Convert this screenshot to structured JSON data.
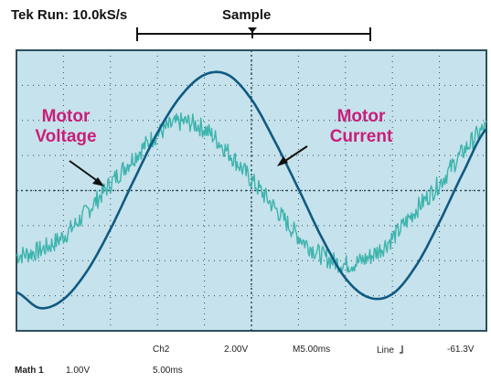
{
  "header": {
    "status": "Tek Run: 10.0kS/s",
    "mode": "Sample"
  },
  "annotations": {
    "voltage": [
      "Motor",
      "Voltage"
    ],
    "current": [
      "Motor",
      "Current"
    ]
  },
  "readout": {
    "ch_label": "Ch2",
    "ch_scale": "2.00V",
    "timebase": "M5.00ms",
    "trigger_source": "Line",
    "trigger_icon": "trigger-slope-icon",
    "trigger_level": "-61.3V",
    "math_label": "Math 1",
    "math_scale": "1.00V",
    "math_time": "5.00ms"
  },
  "colors": {
    "screen_bg": "#c6e2ec",
    "current_trace": "#0f5a82",
    "voltage_trace": "#3cb4ac",
    "annotation": "#c81e78",
    "graticule": "#2f4e5c"
  },
  "chart_data": {
    "type": "line",
    "grid": true,
    "grid_divisions": {
      "x": 10,
      "y": 8
    },
    "title": "",
    "xlabel": "",
    "ylabel": "",
    "xlim": [
      0,
      10
    ],
    "ylim": [
      -4,
      4
    ],
    "series": [
      {
        "name": "Motor Current",
        "color": "#0f5a82",
        "noisy": false,
        "x": [
          0,
          0.5,
          1,
          1.5,
          2,
          2.5,
          3,
          3.5,
          4,
          4.5,
          5,
          5.5,
          6,
          6.5,
          7,
          7.5,
          8,
          8.5,
          9,
          9.5,
          10
        ],
        "y": [
          -2.9,
          -3.35,
          -3.1,
          -2.3,
          -1.1,
          0.3,
          1.65,
          2.7,
          3.3,
          3.3,
          2.6,
          1.4,
          0.05,
          -1.35,
          -2.5,
          -3.05,
          -2.95,
          -2.15,
          -0.9,
          0.5,
          1.75
        ]
      },
      {
        "name": "Motor Voltage",
        "color": "#3cb4ac",
        "noisy": true,
        "x": [
          0,
          0.5,
          1,
          1.5,
          2,
          2.5,
          3,
          3.5,
          4,
          4.5,
          5,
          5.5,
          6,
          6.5,
          7,
          7.5,
          8,
          8.5,
          9,
          9.5,
          10
        ],
        "y": [
          -1.85,
          -1.7,
          -1.3,
          -0.6,
          0.2,
          0.95,
          1.6,
          1.95,
          1.75,
          1.1,
          0.3,
          -0.5,
          -1.3,
          -1.85,
          -2.1,
          -1.9,
          -1.35,
          -0.55,
          0.2,
          1.1,
          1.8
        ]
      }
    ]
  }
}
